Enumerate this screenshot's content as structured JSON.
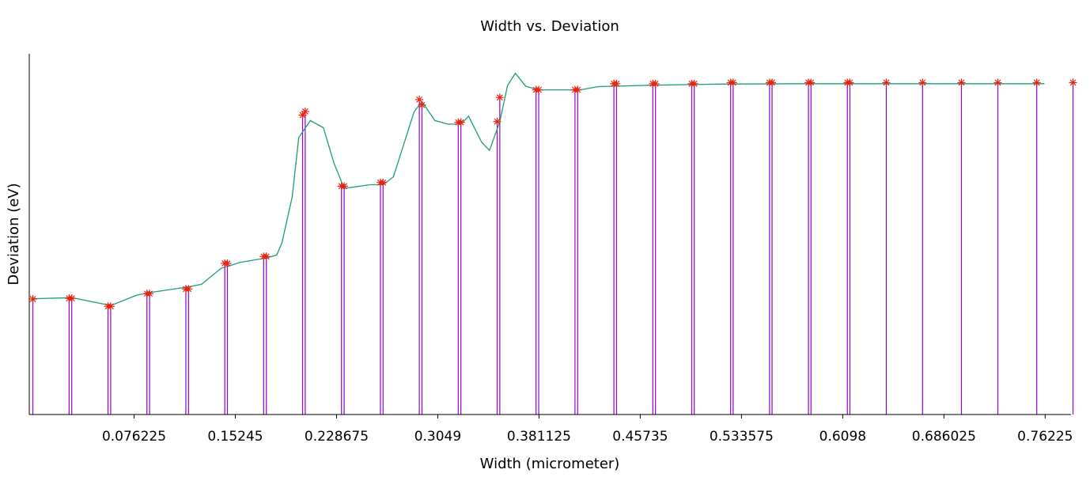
{
  "chart_data": {
    "type": "line",
    "title": "Width vs. Deviation",
    "xlabel": "Width (micrometer)",
    "ylabel": "Deviation (eV)",
    "xlim": [
      -0.0027,
      0.7817
    ],
    "ylim": [
      0,
      1.0
    ],
    "x_ticks": [
      0.076225,
      0.15245,
      0.228675,
      0.3049,
      0.381125,
      0.45735,
      0.533575,
      0.6098,
      0.686025,
      0.76225
    ],
    "x_tick_labels": [
      "0.076225",
      "0.15245",
      "0.228675",
      "0.3049",
      "0.381125",
      "0.45735",
      "0.533575",
      "0.6098",
      "0.686025",
      "0.76225"
    ],
    "y_ticks_shown": false,
    "grid": false,
    "legend": "none",
    "colors": {
      "line": "#1a9e7a",
      "markers": "#e82010",
      "impulses": "#9400d3",
      "axis": "#000000"
    },
    "series": [
      {
        "style": "line",
        "x": [
          0.0,
          0.0293,
          0.0537,
          0.0586,
          0.0781,
          0.0879,
          0.1172,
          0.127,
          0.1416,
          0.1563,
          0.1758,
          0.1836,
          0.1875,
          0.1953,
          0.2002,
          0.209,
          0.2188,
          0.2266,
          0.2344,
          0.2539,
          0.2637,
          0.2715,
          0.2871,
          0.293,
          0.3027,
          0.3125,
          0.3223,
          0.3281,
          0.3379,
          0.3438,
          0.3516,
          0.3574,
          0.3633,
          0.3672,
          0.3711,
          0.3809,
          0.4121,
          0.4258,
          0.4668,
          0.5176,
          0.5859,
          0.7617
        ],
        "y": [
          0.321,
          0.324,
          0.306,
          0.302,
          0.331,
          0.338,
          0.354,
          0.361,
          0.405,
          0.422,
          0.434,
          0.442,
          0.475,
          0.603,
          0.768,
          0.815,
          0.795,
          0.698,
          0.627,
          0.637,
          0.637,
          0.659,
          0.84,
          0.867,
          0.815,
          0.805,
          0.805,
          0.827,
          0.755,
          0.732,
          0.812,
          0.912,
          0.946,
          0.928,
          0.91,
          0.9,
          0.9,
          0.909,
          0.913,
          0.916,
          0.917,
          0.917
        ]
      },
      {
        "style": "points-with-impulses",
        "x": [
          0.0,
          0.0273,
          0.0293,
          0.0566,
          0.0586,
          0.0859,
          0.0879,
          0.1152,
          0.1172,
          0.1445,
          0.1465,
          0.1738,
          0.1758,
          0.2031,
          0.2051,
          0.2324,
          0.2344,
          0.2617,
          0.2637,
          0.291,
          0.293,
          0.3203,
          0.3223,
          0.3496,
          0.3516,
          0.3789,
          0.3809,
          0.4082,
          0.4102,
          0.4375,
          0.4395,
          0.4668,
          0.4688,
          0.4961,
          0.498,
          0.5254,
          0.5273,
          0.5547,
          0.5566,
          0.584,
          0.5859,
          0.6133,
          0.6152,
          0.6426,
          0.6699,
          0.6992,
          0.7266,
          0.7559,
          0.7832
        ],
        "y": [
          0.32,
          0.322,
          0.322,
          0.3,
          0.3,
          0.335,
          0.335,
          0.348,
          0.348,
          0.419,
          0.419,
          0.438,
          0.438,
          0.83,
          0.84,
          0.633,
          0.633,
          0.643,
          0.643,
          0.873,
          0.858,
          0.81,
          0.81,
          0.812,
          0.879,
          0.9,
          0.9,
          0.9,
          0.9,
          0.917,
          0.917,
          0.917,
          0.917,
          0.917,
          0.917,
          0.92,
          0.92,
          0.92,
          0.92,
          0.92,
          0.92,
          0.92,
          0.92,
          0.92,
          0.92,
          0.92,
          0.92,
          0.92,
          0.92
        ]
      }
    ]
  }
}
